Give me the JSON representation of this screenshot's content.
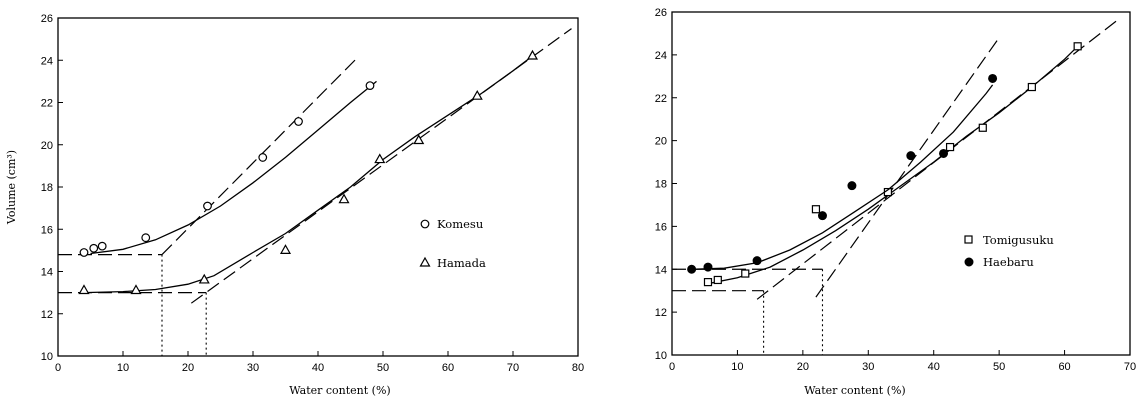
{
  "chart_data": [
    {
      "type": "scatter",
      "xlabel": "Water content (%)",
      "ylabel": "Volume (cm³)",
      "xlim": [
        0,
        80
      ],
      "ylim": [
        10,
        26
      ],
      "xticks": [
        0,
        10,
        20,
        30,
        40,
        50,
        60,
        70,
        80
      ],
      "yticks": [
        10,
        12,
        14,
        16,
        18,
        20,
        22,
        24,
        26
      ],
      "legend_position": "right",
      "series": [
        {
          "name": "Komesu",
          "marker": "open-circle",
          "points": [
            [
              4,
              14.9
            ],
            [
              5.5,
              15.1
            ],
            [
              6.8,
              15.2
            ],
            [
              13.5,
              15.6
            ],
            [
              23,
              17.1
            ],
            [
              31.5,
              19.4
            ],
            [
              37,
              21.1
            ],
            [
              48,
              22.8
            ]
          ],
          "fit": [
            [
              5,
              14.85
            ],
            [
              10,
              15.05
            ],
            [
              15,
              15.5
            ],
            [
              20,
              16.2
            ],
            [
              25,
              17.1
            ],
            [
              30,
              18.2
            ],
            [
              35,
              19.4
            ],
            [
              40,
              20.7
            ],
            [
              45,
              22.0
            ],
            [
              49,
              23.0
            ]
          ],
          "asymptote": [
            [
              16,
              14.8
            ],
            [
              46,
              24.1
            ]
          ],
          "plateau": 14.8,
          "intersection_x": 16
        },
        {
          "name": "Hamada",
          "marker": "open-triangle",
          "points": [
            [
              4,
              13.1
            ],
            [
              12,
              13.1
            ],
            [
              22.5,
              13.6
            ],
            [
              35,
              15
            ],
            [
              44,
              17.4
            ],
            [
              49.5,
              19.3
            ],
            [
              55.5,
              20.2
            ],
            [
              64.5,
              22.3
            ],
            [
              73,
              24.2
            ]
          ],
          "fit": [
            [
              4,
              13.0
            ],
            [
              10,
              13.05
            ],
            [
              15,
              13.15
            ],
            [
              20,
              13.4
            ],
            [
              24,
              13.8
            ],
            [
              30,
              14.9
            ],
            [
              35,
              15.8
            ],
            [
              40,
              16.9
            ],
            [
              45,
              18.0
            ],
            [
              50,
              19.3
            ],
            [
              55,
              20.4
            ],
            [
              60,
              21.4
            ],
            [
              65,
              22.4
            ],
            [
              70,
              23.5
            ],
            [
              73,
              24.2
            ]
          ],
          "asymptote": [
            [
              20.5,
              12.5
            ],
            [
              79,
              25.5
            ]
          ],
          "plateau": 13.0,
          "intersection_x": 22.8
        }
      ]
    },
    {
      "type": "scatter",
      "xlabel": "Water content (%)",
      "ylabel": "",
      "xlim": [
        0,
        70
      ],
      "ylim": [
        10,
        26
      ],
      "xticks": [
        0,
        10,
        20,
        30,
        40,
        50,
        60,
        70
      ],
      "yticks": [
        10,
        12,
        14,
        16,
        18,
        20,
        22,
        24,
        26
      ],
      "legend_position": "right",
      "series": [
        {
          "name": "Tomigusuku",
          "marker": "open-square",
          "points": [
            [
              5.5,
              13.4
            ],
            [
              7,
              13.5
            ],
            [
              11.2,
              13.8
            ],
            [
              22,
              16.8
            ],
            [
              33,
              17.6
            ],
            [
              42.5,
              19.7
            ],
            [
              47.5,
              20.6
            ],
            [
              55,
              22.5
            ],
            [
              62,
              24.4
            ]
          ],
          "fit": [
            [
              5,
              13.3
            ],
            [
              10,
              13.6
            ],
            [
              15,
              14.1
            ],
            [
              20,
              14.9
            ],
            [
              25,
              15.8
            ],
            [
              30,
              16.8
            ],
            [
              35,
              17.9
            ],
            [
              40,
              19.0
            ],
            [
              45,
              20.2
            ],
            [
              50,
              21.3
            ],
            [
              55,
              22.5
            ],
            [
              60,
              23.8
            ],
            [
              62,
              24.4
            ]
          ],
          "asymptote": [
            [
              13,
              12.6
            ],
            [
              68,
              25.6
            ]
          ],
          "plateau": 13.0,
          "intersection_x": 14
        },
        {
          "name": "Haebaru",
          "marker": "filled-circle",
          "points": [
            [
              3,
              14
            ],
            [
              5.5,
              14.1
            ],
            [
              13,
              14.4
            ],
            [
              23,
              16.5
            ],
            [
              27.5,
              17.9
            ],
            [
              36.5,
              19.3
            ],
            [
              41.5,
              19.4
            ],
            [
              49,
              22.9
            ]
          ],
          "fit": [
            [
              3,
              14.0
            ],
            [
              8,
              14.05
            ],
            [
              13,
              14.3
            ],
            [
              18,
              14.9
            ],
            [
              23,
              15.7
            ],
            [
              28,
              16.7
            ],
            [
              33,
              17.7
            ],
            [
              38,
              19.0
            ],
            [
              43,
              20.4
            ],
            [
              48,
              22.2
            ],
            [
              49,
              22.6
            ]
          ],
          "asymptote": [
            [
              22,
              12.7
            ],
            [
              50,
              24.8
            ]
          ],
          "plateau": 14.0,
          "intersection_x": 23
        }
      ]
    }
  ]
}
